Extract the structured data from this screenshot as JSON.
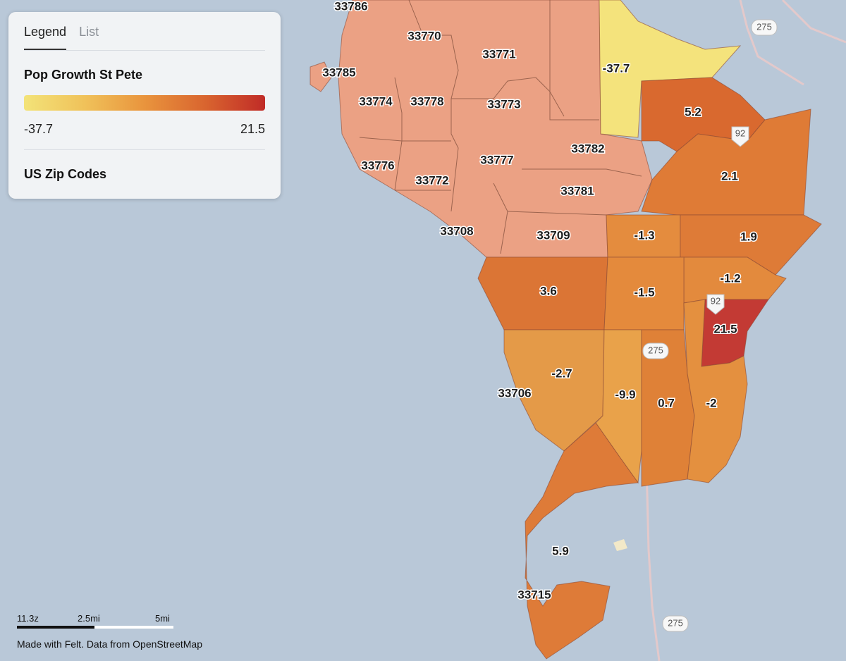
{
  "legend": {
    "tabs": [
      {
        "label": "Legend",
        "active": true
      },
      {
        "label": "List",
        "active": false
      }
    ],
    "layer_title": "Pop Growth St Pete",
    "range_min": "-37.7",
    "range_max": "21.5",
    "gradient_colors": [
      "#f3e379",
      "#e9943d",
      "#c02b27"
    ],
    "second_layer": "US Zip Codes"
  },
  "map": {
    "water_color": "#b9c8d8",
    "zip_labels": [
      "33786",
      "33770",
      "33771",
      "33785",
      "33774",
      "33778",
      "33773",
      "33782",
      "33777",
      "33776",
      "33772",
      "33781",
      "33708",
      "33709",
      "33706",
      "33715"
    ],
    "growth_values": [
      "-37.7",
      "5.2",
      "2.1",
      "-1.3",
      "1.9",
      "-1.2",
      "3.6",
      "-1.5",
      "21.5",
      "-2.7",
      "-9.9",
      "0.7",
      "-2",
      "5.9"
    ],
    "highway_shields": [
      "275",
      "92",
      "92",
      "275",
      "275"
    ]
  },
  "scale": {
    "zoom": "11.3z",
    "mid_label": "2.5mi",
    "end_label": "5mi"
  },
  "attribution": "Made with Felt. Data from OpenStreetMap"
}
